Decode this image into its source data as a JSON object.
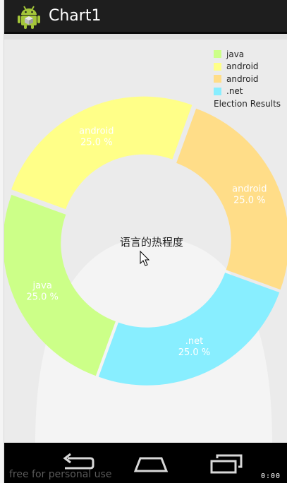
{
  "app": {
    "title": "Chart1",
    "icon": "android-app-icon"
  },
  "legend": {
    "items": [
      {
        "label": "java",
        "color": "#ccff88"
      },
      {
        "label": "android",
        "color": "#ffff88"
      },
      {
        "label": "android",
        "color": "#ffdd88"
      },
      {
        "label": ".net",
        "color": "#88eeff"
      }
    ],
    "description": "Election Results"
  },
  "chart_data": {
    "type": "pie",
    "donut": true,
    "center_text": "语言的热程度",
    "slices": [
      {
        "name": "java",
        "value": 25.0,
        "label": "java",
        "value_label": "25.0 %",
        "color": "#ccff88"
      },
      {
        "name": "android",
        "value": 25.0,
        "label": "android",
        "value_label": "25.0 %",
        "color": "#ffff88"
      },
      {
        "name": "android",
        "value": 25.0,
        "label": "android",
        "value_label": "25.0 %",
        "color": "#ffdd88"
      },
      {
        "name": ".net",
        "value": 25.0,
        "label": ".net",
        "value_label": "25.0 %",
        "color": "#88eeff"
      }
    ],
    "legend_position": "top-right"
  },
  "navbar": {
    "back_icon": "back-icon",
    "home_icon": "home-icon",
    "recents_icon": "recents-icon"
  },
  "watermark": "free for personal use",
  "clock": "0:00"
}
